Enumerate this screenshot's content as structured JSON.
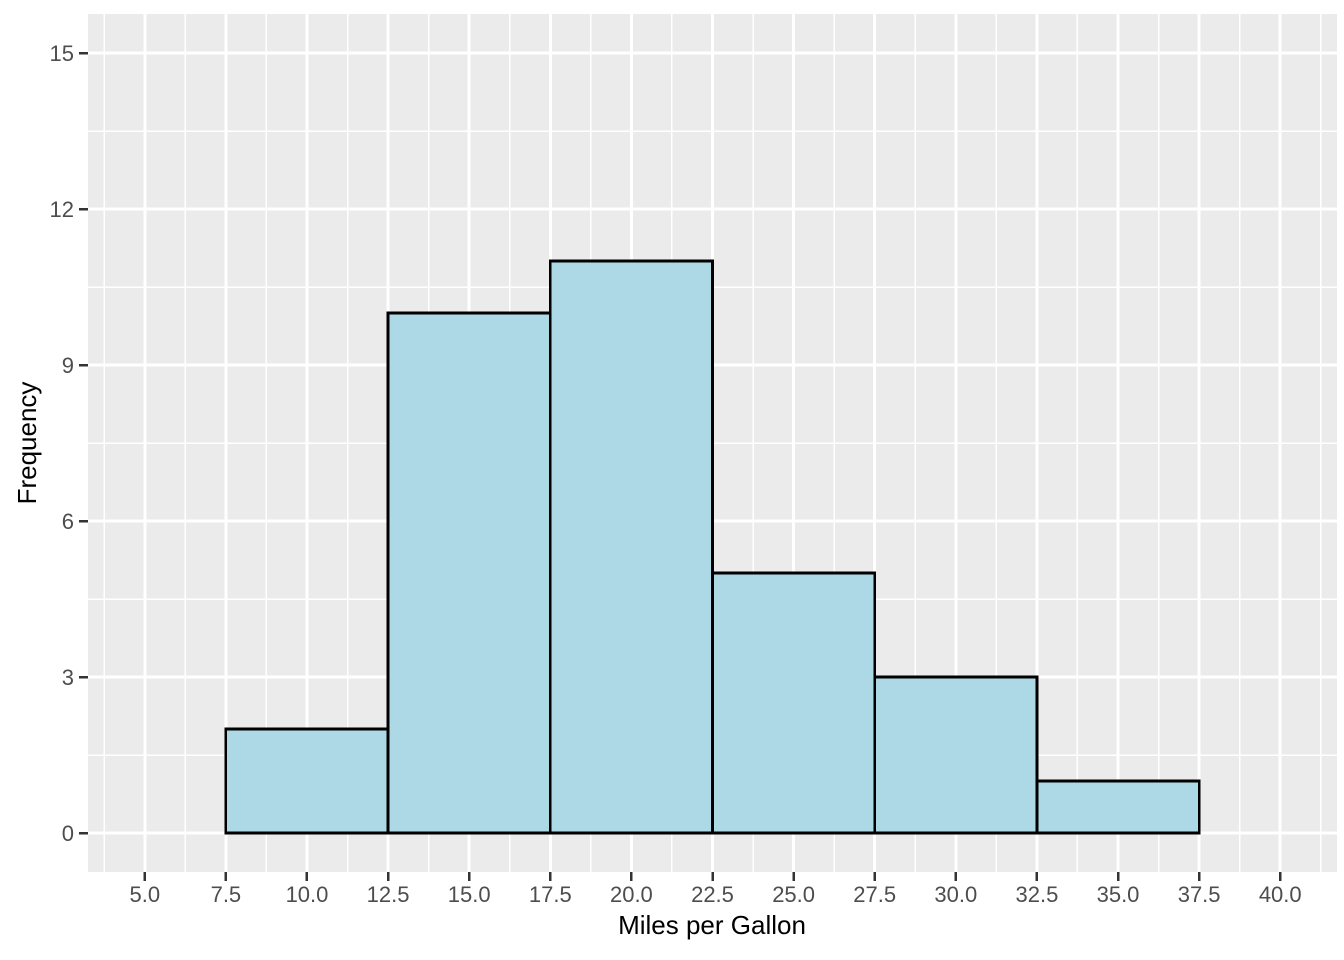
{
  "chart_data": {
    "type": "bar",
    "subtype": "histogram",
    "title": "",
    "xlabel": "Miles per Gallon",
    "ylabel": "Frequency",
    "bin_edges": [
      7.5,
      12.5,
      17.5,
      22.5,
      27.5,
      32.5,
      37.5
    ],
    "counts": [
      2,
      10,
      11,
      5,
      3,
      1
    ],
    "x_axis": {
      "range": [
        3.25,
        41.75
      ],
      "major_ticks": [
        5.0,
        7.5,
        10.0,
        12.5,
        15.0,
        17.5,
        20.0,
        22.5,
        25.0,
        27.5,
        30.0,
        32.5,
        35.0,
        37.5,
        40.0
      ],
      "tick_labels": [
        "5.0",
        "7.5",
        "10.0",
        "12.5",
        "15.0",
        "17.5",
        "20.0",
        "22.5",
        "25.0",
        "27.5",
        "30.0",
        "32.5",
        "35.0",
        "37.5",
        "40.0"
      ],
      "minor_ticks": [
        3.75,
        6.25,
        8.75,
        11.25,
        13.75,
        16.25,
        18.75,
        21.25,
        23.75,
        26.25,
        28.75,
        31.25,
        33.75,
        36.25,
        38.75,
        41.25
      ]
    },
    "y_axis": {
      "range": [
        -0.75,
        15.75
      ],
      "major_ticks": [
        0,
        3,
        6,
        9,
        12,
        15
      ],
      "tick_labels": [
        "0",
        "3",
        "6",
        "9",
        "12",
        "15"
      ],
      "minor_ticks": [
        1.5,
        4.5,
        7.5,
        10.5,
        13.5
      ]
    },
    "grid": "on",
    "legend": "none",
    "style": {
      "panel_background": "#EBEBEB",
      "grid_major_color": "#FFFFFF",
      "grid_minor_color": "#FFFFFF",
      "bar_fill": "#ADD8E6",
      "bar_stroke": "#000000",
      "tick_mark_color": "#333333",
      "tick_label_color": "#4D4D4D",
      "axis_title_color": "#000000",
      "outer_background": "#FFFFFF"
    }
  }
}
